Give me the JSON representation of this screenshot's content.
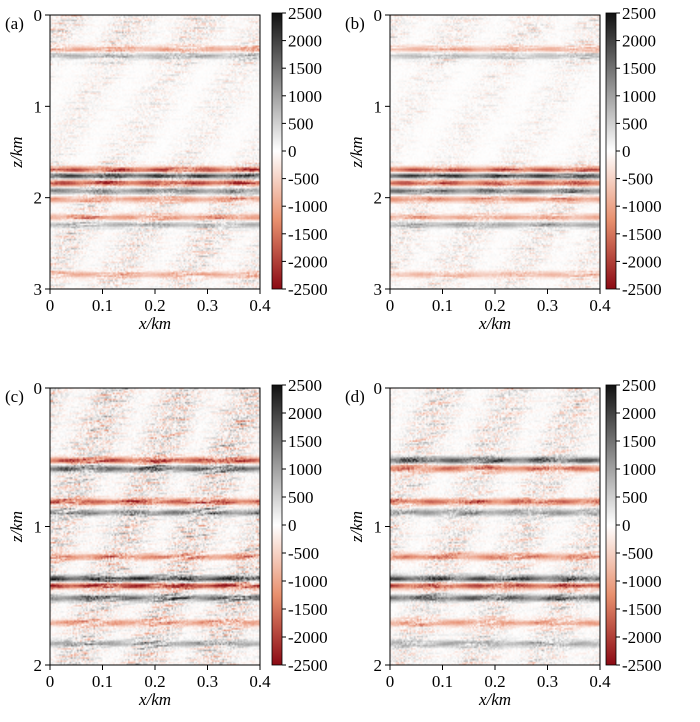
{
  "colors": {
    "positive": "#111111",
    "zero": "#ffffff",
    "negative": "#8b0a14",
    "mid_negative": "#e9967a",
    "mid_positive": "#9a9a9a"
  },
  "chart_data": [
    {
      "type": "heatmap",
      "panel_label": "(a)",
      "xlabel": "x/km",
      "ylabel": "z/km",
      "x_ticks": [
        "0",
        "0.1",
        "0.2",
        "0.3",
        "0.4"
      ],
      "y_ticks": [
        "0",
        "1",
        "2",
        "3"
      ],
      "xlim": [
        0,
        0.4
      ],
      "ylim": [
        3,
        0
      ],
      "colorbar_ticks": [
        "2500",
        "2000",
        "1500",
        "1000",
        "500",
        "0",
        "-500",
        "-1000",
        "-1500",
        "-2000",
        "-2500"
      ],
      "colorbar_range": [
        -2500,
        2500
      ],
      "noise": 0.55,
      "strong_reflectors": [
        {
          "z": 1.7,
          "amp": -0.9
        },
        {
          "z": 1.76,
          "amp": 0.95
        },
        {
          "z": 1.84,
          "amp": -0.85
        },
        {
          "z": 1.93,
          "amp": 0.6
        },
        {
          "z": 2.02,
          "amp": -0.5
        },
        {
          "z": 0.37,
          "amp": -0.45
        },
        {
          "z": 0.44,
          "amp": 0.4
        },
        {
          "z": 2.22,
          "amp": -0.5
        },
        {
          "z": 2.3,
          "amp": 0.4
        },
        {
          "z": 2.85,
          "amp": -0.4
        }
      ]
    },
    {
      "type": "heatmap",
      "panel_label": "(b)",
      "xlabel": "x/km",
      "ylabel": "z/km",
      "x_ticks": [
        "0",
        "0.1",
        "0.2",
        "0.3",
        "0.4"
      ],
      "y_ticks": [
        "0",
        "1",
        "2",
        "3"
      ],
      "xlim": [
        0,
        0.4
      ],
      "ylim": [
        3,
        0
      ],
      "colorbar_ticks": [
        "2500",
        "2000",
        "1500",
        "1000",
        "500",
        "0",
        "-500",
        "-1000",
        "-1500",
        "-2000",
        "-2500"
      ],
      "colorbar_range": [
        -2500,
        2500
      ],
      "noise": 0.4,
      "strong_reflectors": [
        {
          "z": 1.7,
          "amp": -0.85
        },
        {
          "z": 1.76,
          "amp": 0.95
        },
        {
          "z": 1.84,
          "amp": -0.8
        },
        {
          "z": 1.93,
          "amp": 0.7
        },
        {
          "z": 2.02,
          "amp": -0.55
        },
        {
          "z": 0.37,
          "amp": -0.4
        },
        {
          "z": 0.44,
          "amp": 0.35
        },
        {
          "z": 2.22,
          "amp": -0.45
        },
        {
          "z": 2.3,
          "amp": 0.45
        },
        {
          "z": 2.85,
          "amp": -0.35
        }
      ]
    },
    {
      "type": "heatmap",
      "panel_label": "(c)",
      "xlabel": "x/km",
      "ylabel": "z/km",
      "x_ticks": [
        "0",
        "0.1",
        "0.2",
        "0.3",
        "0.4"
      ],
      "y_ticks": [
        "0",
        "1",
        "2"
      ],
      "xlim": [
        0,
        0.4
      ],
      "ylim": [
        2,
        0
      ],
      "colorbar_ticks": [
        "2500",
        "2000",
        "1500",
        "1000",
        "500",
        "0",
        "-500",
        "-1000",
        "-1500",
        "-2000",
        "-2500"
      ],
      "colorbar_range": [
        -2500,
        2500
      ],
      "noise": 0.75,
      "strong_reflectors": [
        {
          "z": 0.52,
          "amp": -0.8
        },
        {
          "z": 0.58,
          "amp": 0.75
        },
        {
          "z": 0.82,
          "amp": -0.75
        },
        {
          "z": 0.9,
          "amp": 0.6
        },
        {
          "z": 1.22,
          "amp": -0.55
        },
        {
          "z": 1.38,
          "amp": 0.95
        },
        {
          "z": 1.43,
          "amp": -0.95
        },
        {
          "z": 1.52,
          "amp": 0.7
        },
        {
          "z": 1.7,
          "amp": -0.5
        },
        {
          "z": 1.85,
          "amp": 0.45
        }
      ]
    },
    {
      "type": "heatmap",
      "panel_label": "(d)",
      "xlabel": "x/km",
      "ylabel": "z/km",
      "x_ticks": [
        "0",
        "0.1",
        "0.2",
        "0.3",
        "0.4"
      ],
      "y_ticks": [
        "0",
        "1",
        "2"
      ],
      "xlim": [
        0,
        0.4
      ],
      "ylim": [
        2,
        0
      ],
      "colorbar_ticks": [
        "2500",
        "2000",
        "1500",
        "1000",
        "500",
        "0",
        "-500",
        "-1000",
        "-1500",
        "-2000",
        "-2500"
      ],
      "colorbar_range": [
        -2500,
        2500
      ],
      "noise": 0.6,
      "strong_reflectors": [
        {
          "z": 0.52,
          "amp": 0.8
        },
        {
          "z": 0.58,
          "amp": -0.7
        },
        {
          "z": 0.82,
          "amp": -0.7
        },
        {
          "z": 0.9,
          "amp": 0.55
        },
        {
          "z": 1.22,
          "amp": -0.6
        },
        {
          "z": 1.38,
          "amp": 0.9
        },
        {
          "z": 1.43,
          "amp": -0.85
        },
        {
          "z": 1.52,
          "amp": 0.75
        },
        {
          "z": 1.7,
          "amp": -0.5
        },
        {
          "z": 1.85,
          "amp": 0.45
        }
      ]
    }
  ]
}
